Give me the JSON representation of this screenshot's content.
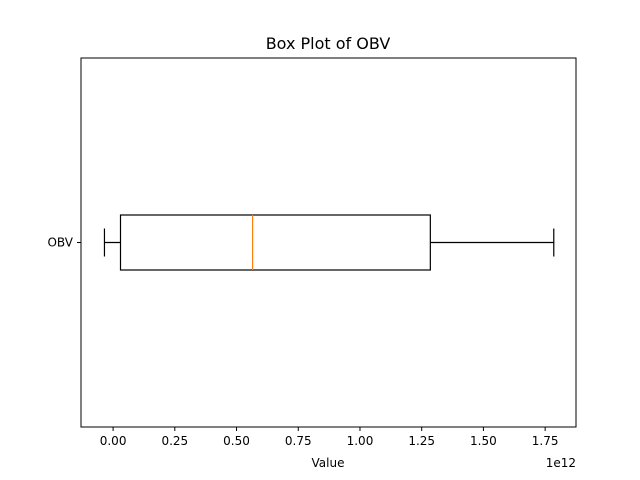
{
  "chart_data": {
    "type": "box",
    "orientation": "horizontal",
    "title": "Box Plot of OBV",
    "xlabel": "Value",
    "ylabel": "",
    "x_offset_label": "1e12",
    "xlim": [
      -0.13,
      1.875
    ],
    "x_scale_factor": 1000000000000.0,
    "x_ticks": [
      0.0,
      0.25,
      0.5,
      0.75,
      1.0,
      1.25,
      1.5,
      1.75
    ],
    "x_tick_labels": [
      "0.00",
      "0.25",
      "0.50",
      "0.75",
      "1.00",
      "1.25",
      "1.50",
      "1.75"
    ],
    "categories": [
      "OBV"
    ],
    "boxes": [
      {
        "name": "OBV",
        "whisker_low": -0.035,
        "q1": 0.03,
        "median": 0.565,
        "q3": 1.285,
        "whisker_high": 1.785
      }
    ],
    "grid": false,
    "legend": "none",
    "colors": {
      "box": "#000000",
      "median": "#ff7f0e",
      "whisker": "#000000"
    }
  }
}
